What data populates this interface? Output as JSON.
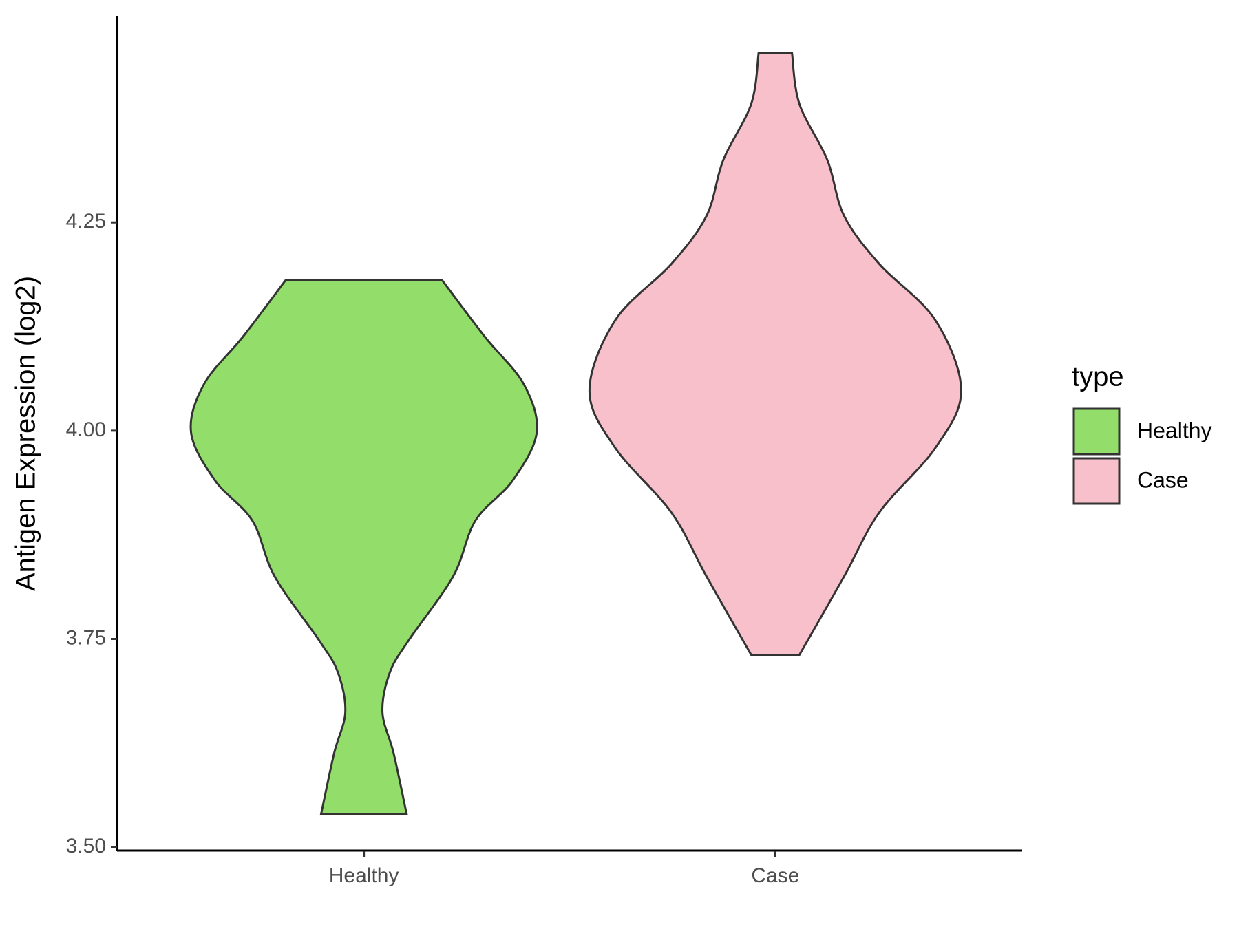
{
  "chart_data": {
    "type": "violin",
    "y_label": "Antigen Expression (log2)",
    "categories": [
      "Healthy",
      "Case"
    ],
    "series": [
      {
        "name": "Healthy",
        "color": "#93dd6b",
        "y": [
          4.181,
          4.113,
          4.056,
          3.998,
          3.94,
          3.892,
          3.825,
          3.748,
          3.71,
          3.662,
          3.613,
          3.54
        ],
        "density": [
          0.42,
          0.65,
          0.86,
          0.93,
          0.8,
          0.6,
          0.48,
          0.24,
          0.14,
          0.1,
          0.16,
          0.23
        ]
      },
      {
        "name": "Case",
        "color": "#f7c0cb",
        "y": [
          4.453,
          4.392,
          4.325,
          4.258,
          4.2,
          4.133,
          4.048,
          3.979,
          3.902,
          3.825,
          3.731
        ],
        "density": [
          0.09,
          0.13,
          0.28,
          0.37,
          0.56,
          0.86,
          1,
          0.86,
          0.56,
          0.37,
          0.13
        ]
      }
    ],
    "ylim": [
      3.496,
      4.498
    ],
    "yticks": [
      {
        "value": 3.5,
        "label": "3.50"
      },
      3.75,
      {
        "value": 4.0,
        "label": "4.00"
      },
      4.25
    ],
    "legend": {
      "title": "type",
      "position": "right"
    },
    "grid": false
  }
}
